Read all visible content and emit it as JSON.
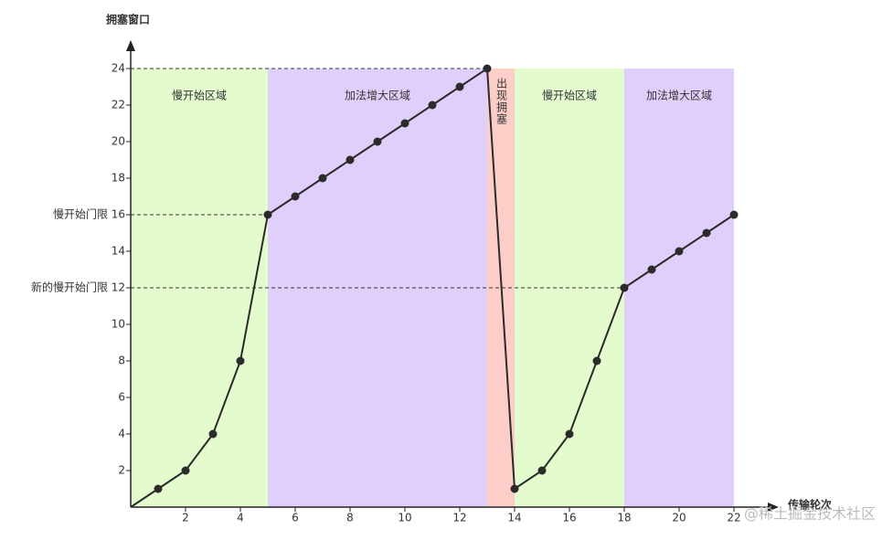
{
  "chart_data": {
    "type": "line",
    "y_label": "拥塞窗口",
    "x_label": "传输轮次",
    "x": [
      0,
      1,
      2,
      3,
      4,
      5,
      6,
      7,
      8,
      9,
      10,
      11,
      12,
      13,
      14,
      15,
      16,
      17,
      18,
      19,
      20,
      21,
      22
    ],
    "series": [
      {
        "color": "#2b2b2b",
        "values": [
          0,
          1,
          2,
          4,
          8,
          16,
          17,
          18,
          19,
          20,
          21,
          22,
          23,
          24,
          1,
          2,
          4,
          8,
          12,
          13,
          14,
          15,
          16
        ]
      }
    ],
    "xlim": [
      0,
      22
    ],
    "xticks": [
      2,
      4,
      6,
      8,
      10,
      12,
      14,
      16,
      18,
      20,
      22
    ],
    "ylim": [
      0,
      24
    ],
    "yticks": [
      2,
      4,
      6,
      8,
      10,
      12,
      14,
      16,
      18,
      20,
      22,
      24
    ],
    "regions": [
      {
        "start": 0,
        "end": 5,
        "label": "慢开始区域",
        "color": "#e4fbce"
      },
      {
        "start": 5,
        "end": 13,
        "label": "加法增大区域",
        "color": "#e0cffb"
      },
      {
        "start": 13,
        "end": 14,
        "label": "出现拥塞",
        "color": "#fdcdc8"
      },
      {
        "start": 14,
        "end": 18,
        "label": "慢开始区域",
        "color": "#e4fbce"
      },
      {
        "start": 18,
        "end": 22,
        "label": "加法增大区域",
        "color": "#e0cffb"
      }
    ],
    "reference_lines": [
      {
        "value": 24,
        "end": 13
      },
      {
        "value": 16,
        "end": 5,
        "label": "慢开始门限"
      },
      {
        "value": 12,
        "end": 18,
        "label": "新的慢开始门限"
      }
    ],
    "watermark": "@稀土掘金技术社区"
  }
}
